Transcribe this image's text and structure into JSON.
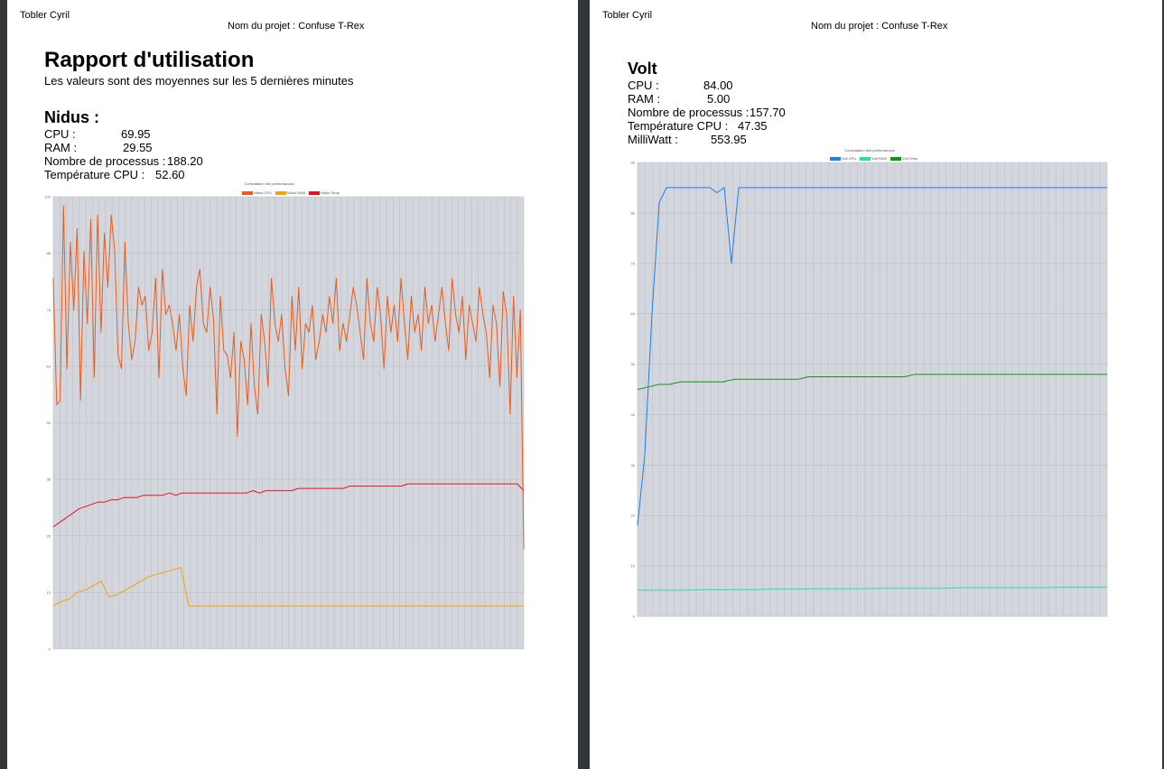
{
  "pages": [
    {
      "author": "Tobler Cyril",
      "project": "Nom du projet : Confuse T-Rex",
      "title": "Rapport d'utilisation",
      "subtitle": "Les valeurs sont des moyennes sur les 5 dernières minutes",
      "section": "Nidus :",
      "stats": [
        {
          "label": "CPU :",
          "value": "69.95"
        },
        {
          "label": "RAM :",
          "value": "29.55"
        },
        {
          "label": "Nombre de processus :",
          "value": "188.20"
        },
        {
          "label": "Température CPU :",
          "value": "52.60"
        }
      ]
    },
    {
      "author": "Tobler Cyril",
      "project": "Nom du projet : Confuse T-Rex",
      "section": "Volt",
      "stats": [
        {
          "label": "CPU :",
          "value": "84.00"
        },
        {
          "label": "RAM :",
          "value": "5.00"
        },
        {
          "label": "Nombre de processus :",
          "value": "157.70"
        },
        {
          "label": "Température CPU :",
          "value": "47.35"
        },
        {
          "label": "MilliWatt :",
          "value": "553.95"
        }
      ]
    }
  ],
  "chart_data": [
    {
      "type": "line",
      "title": "Consultation des performances",
      "ylim": [
        0,
        100
      ],
      "grid": true,
      "legend_position": "top",
      "plot_background": "#d3d6dc",
      "series": [
        {
          "name": "Nidus CPU",
          "color": "#ec5b1b",
          "values": [
            82,
            54,
            55,
            98,
            62,
            90,
            75,
            93,
            55,
            88,
            72,
            95,
            60,
            96,
            70,
            92,
            80,
            96,
            88,
            65,
            62,
            90,
            72,
            64,
            68,
            80,
            76,
            78,
            66,
            70,
            82,
            60,
            84,
            74,
            76,
            72,
            66,
            74,
            62,
            56,
            76,
            68,
            80,
            84,
            72,
            70,
            80,
            73,
            52,
            78,
            66,
            65,
            60,
            70,
            47,
            68,
            64,
            54,
            72,
            58,
            52,
            74,
            68,
            58,
            82,
            72,
            68,
            74,
            62,
            56,
            78,
            66,
            80,
            62,
            72,
            70,
            76,
            64,
            68,
            74,
            70,
            78,
            72,
            82,
            66,
            72,
            68,
            74,
            80,
            76,
            70,
            64,
            82,
            72,
            68,
            80,
            74,
            62,
            78,
            70,
            76,
            68,
            82,
            72,
            64,
            78,
            70,
            74,
            66,
            80,
            72,
            76,
            68,
            74,
            80,
            72,
            66,
            82,
            74,
            70,
            78,
            64,
            76,
            72,
            68,
            80,
            74,
            70,
            60,
            76,
            72,
            58,
            79,
            74,
            52,
            78,
            60,
            75,
            22
          ]
        },
        {
          "name": "Nidus RAM",
          "color": "#f2a307",
          "values": [
            9.5,
            10.5,
            11,
            12.5,
            13,
            14,
            15,
            11.5,
            12,
            13,
            14,
            15,
            16,
            16.5,
            17,
            17.5,
            18,
            9.5,
            9.5,
            9.5,
            9.5,
            9.5,
            9.5,
            9.5,
            9.5,
            9.5,
            9.5,
            9.5,
            9.5,
            9.5,
            9.5,
            9.5,
            9.5,
            9.5,
            9.5,
            9.5,
            9.5,
            9.5,
            9.5,
            9.5,
            9.5,
            9.5,
            9.5,
            9.5,
            9.5,
            9.5,
            9.5,
            9.5,
            9.5,
            9.5,
            9.5,
            9.5,
            9.5,
            9.5,
            9.5,
            9.5,
            9.5,
            9.5,
            9.5,
            9.5
          ]
        },
        {
          "name": "Nidus Temp",
          "color": "#e3141b",
          "values": [
            27,
            28,
            29,
            30,
            31,
            31.5,
            32,
            32.5,
            32.5,
            33,
            33,
            33.5,
            33.5,
            33.5,
            34,
            34,
            34,
            34,
            34.5,
            34,
            34.5,
            34.5,
            34.5,
            34.5,
            34.5,
            34.5,
            34.5,
            34.5,
            34.5,
            34.5,
            34.5,
            35,
            34.5,
            35,
            35,
            35,
            35,
            35,
            35.5,
            35.5,
            35.5,
            35.5,
            35.5,
            35.5,
            35.5,
            35.5,
            36,
            36,
            36,
            36,
            36,
            36,
            36,
            36,
            36,
            36.5,
            36.5,
            36.5,
            36.5,
            36.5,
            36.5,
            36.5,
            36.5,
            36.5,
            36.5,
            36.5,
            36.5,
            36.5,
            36.5,
            36.5,
            36.5,
            36.5,
            36.5,
            35
          ]
        }
      ]
    },
    {
      "type": "line",
      "title": "Consultation des performances",
      "ylim": [
        0,
        90
      ],
      "grid": true,
      "legend_position": "top",
      "plot_background": "#d3d6dc",
      "series": [
        {
          "name": "Volt CPU",
          "color": "#1d7ff0",
          "values": [
            18,
            32,
            60,
            82,
            85,
            85,
            85,
            85,
            85,
            85,
            85,
            84,
            85,
            70,
            85,
            85,
            85,
            85,
            85,
            85,
            85,
            85,
            85,
            85,
            85,
            85,
            85,
            85,
            85,
            85,
            85,
            85,
            85,
            85,
            85,
            85,
            85,
            85,
            85,
            85,
            85,
            85,
            85,
            85,
            85,
            85,
            85,
            85,
            85,
            85,
            85,
            85,
            85,
            85,
            85,
            85,
            85,
            85,
            85,
            85,
            85,
            85,
            85,
            85,
            85,
            85
          ]
        },
        {
          "name": "Volt RAM",
          "color": "#1ee59a",
          "values": [
            5.2,
            5.2,
            5.2,
            5.2,
            5.3,
            5.3,
            5.3,
            5.3,
            5.4,
            5.4,
            5.4,
            5.5,
            5.5,
            5.5,
            5.5,
            5.6,
            5.6,
            5.6,
            5.6,
            5.6,
            5.7,
            5.7,
            5.7,
            5.7,
            5.7,
            5.7,
            5.8,
            5.8,
            5.8,
            5.8
          ]
        },
        {
          "name": "Volt Temp",
          "color": "#0a9a0a",
          "values": [
            45,
            45.5,
            46,
            46,
            46.5,
            46.5,
            46.5,
            46.5,
            46.5,
            47,
            47,
            47,
            47,
            47,
            47,
            47,
            47.5,
            47.5,
            47.5,
            47.5,
            47.5,
            47.5,
            47.5,
            47.5,
            47.5,
            47.5,
            48,
            48,
            48,
            48,
            48,
            48,
            48,
            48,
            48,
            48,
            48,
            48,
            48,
            48,
            48,
            48,
            48,
            48,
            48
          ]
        }
      ]
    }
  ]
}
